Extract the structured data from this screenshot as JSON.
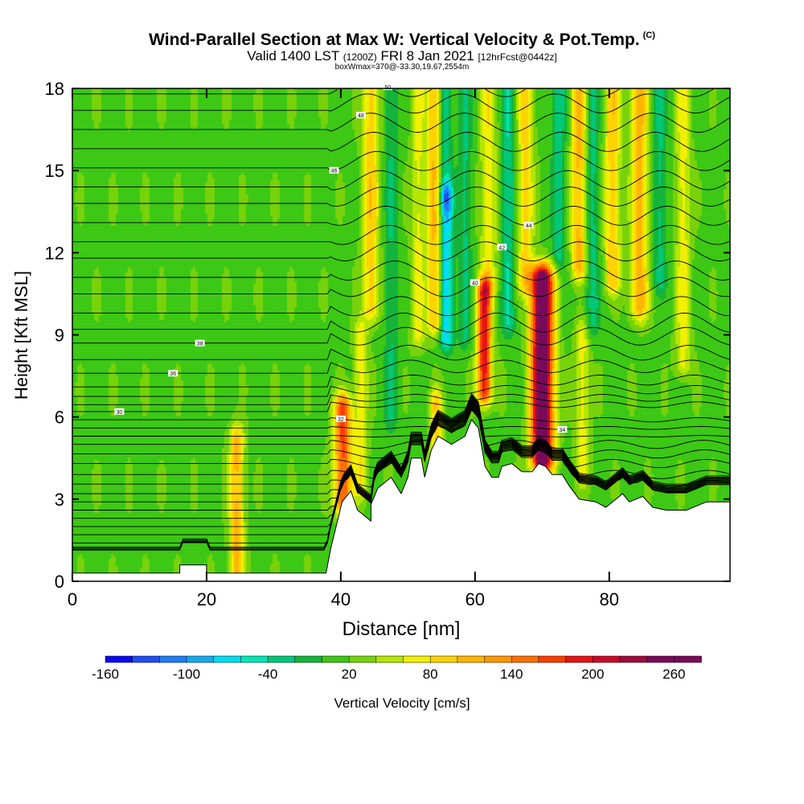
{
  "title": {
    "main": "Wind-Parallel Section at Max W: Vertical Velocity & Pot.Temp.",
    "tag": "(C)",
    "valid": "Valid 1400 LST",
    "valid_z": "(1200Z)",
    "valid_date": "FRI 8 Jan 2021",
    "forecast": "[12hrFcst@0442z]",
    "box": "boxWmax=370@-33.30,19.67,2554m"
  },
  "chart_data": {
    "type": "heatmap",
    "xlabel": "Distance [nm]",
    "ylabel": "Height [Kft MSL]",
    "xlim": [
      0,
      98
    ],
    "ylim": [
      0,
      18
    ],
    "x_ticks": [
      "0",
      "20",
      "40",
      "60",
      "80"
    ],
    "x_tick_values": [
      0,
      20,
      40,
      60,
      80
    ],
    "y_ticks": [
      "0",
      "3",
      "6",
      "9",
      "12",
      "15",
      "18"
    ],
    "y_tick_values": [
      0,
      3,
      6,
      9,
      12,
      15,
      18
    ],
    "colorbar": {
      "label": "Vertical Velocity [cm/s]",
      "tick_labels": [
        "-160",
        "-100",
        "-40",
        "20",
        "80",
        "140",
        "200",
        "260"
      ],
      "tick_values": [
        -160,
        -100,
        -40,
        20,
        80,
        140,
        200,
        260
      ],
      "range": [
        -160,
        280
      ],
      "step": 20,
      "colors": [
        "#0a0af0",
        "#1e4ef5",
        "#1e7cf5",
        "#14aaf0",
        "#00dcf0",
        "#00e6b4",
        "#00c878",
        "#14b43c",
        "#3cc814",
        "#78d20a",
        "#b4e600",
        "#f0f000",
        "#ffd200",
        "#ffb400",
        "#ff9600",
        "#ff6e00",
        "#ff3c00",
        "#e61414",
        "#c80a28",
        "#a00a3c",
        "#780a5a",
        "#780a5a"
      ]
    },
    "background_w": 15,
    "w_features": [
      {
        "x": 24.5,
        "z0": 0.3,
        "z1": 5.2,
        "w": 90,
        "width": 1.1
      },
      {
        "x": 40.3,
        "z0": 3.0,
        "z1": 6.3,
        "w": 150,
        "width": 1.3
      },
      {
        "x": 43.0,
        "z0": 3.5,
        "z1": 9.0,
        "w": 60,
        "width": 1.0
      },
      {
        "x": 44.5,
        "z0": 10.0,
        "z1": 18.0,
        "w": 80,
        "width": 1.2
      },
      {
        "x": 47.5,
        "z0": 6.0,
        "z1": 18.0,
        "w": -35,
        "width": 1.0
      },
      {
        "x": 51.5,
        "z0": 9.0,
        "z1": 18.0,
        "w": 50,
        "width": 1.0
      },
      {
        "x": 54.0,
        "z0": 9.5,
        "z1": 18.0,
        "w": 90,
        "width": 1.2
      },
      {
        "x": 55.7,
        "z0": 9.0,
        "z1": 14.0,
        "w": -100,
        "width": 1.0
      },
      {
        "x": 55.5,
        "z0": 14.0,
        "z1": 18.0,
        "w": -60,
        "width": 1.0
      },
      {
        "x": 54.2,
        "z0": 5.0,
        "z1": 6.5,
        "w": 80,
        "width": 0.9
      },
      {
        "x": 58.5,
        "z0": 9.0,
        "z1": 18.0,
        "w": -40,
        "width": 1.0
      },
      {
        "x": 61.4,
        "z0": 7.0,
        "z1": 10.5,
        "w": 180,
        "width": 1.1
      },
      {
        "x": 62.0,
        "z0": 11.0,
        "z1": 18.0,
        "w": 60,
        "width": 1.2
      },
      {
        "x": 65.0,
        "z0": 9.5,
        "z1": 18.0,
        "w": -55,
        "width": 1.0
      },
      {
        "x": 67.5,
        "z0": 11.0,
        "z1": 18.0,
        "w": 75,
        "width": 1.2
      },
      {
        "x": 70.0,
        "z0": 4.5,
        "z1": 11.0,
        "w": 280,
        "width": 1.6
      },
      {
        "x": 72.5,
        "z0": 12.0,
        "z1": 18.0,
        "w": -50,
        "width": 1.0
      },
      {
        "x": 75.5,
        "z0": 11.5,
        "z1": 18.0,
        "w": 90,
        "width": 1.2
      },
      {
        "x": 77.5,
        "z0": 9.5,
        "z1": 18.0,
        "w": -45,
        "width": 1.0
      },
      {
        "x": 80.5,
        "z0": 11.0,
        "z1": 18.0,
        "w": 80,
        "width": 1.2
      },
      {
        "x": 84.5,
        "z0": 10.0,
        "z1": 18.0,
        "w": 95,
        "width": 1.3
      },
      {
        "x": 87.5,
        "z0": 11.0,
        "z1": 18.0,
        "w": -40,
        "width": 1.0
      },
      {
        "x": 91.0,
        "z0": 8.0,
        "z1": 18.0,
        "w": 55,
        "width": 1.1
      },
      {
        "x": 76.0,
        "z0": 4.0,
        "z1": 9.0,
        "w": 55,
        "width": 1.0
      }
    ],
    "terrain": [
      [
        0,
        0.3
      ],
      [
        16,
        0.3
      ],
      [
        16,
        0.6
      ],
      [
        20,
        0.6
      ],
      [
        20,
        0.3
      ],
      [
        37.8,
        0.3
      ],
      [
        38.5,
        1.2
      ],
      [
        39.5,
        2.2
      ],
      [
        40.2,
        2.9
      ],
      [
        41.5,
        3.3
      ],
      [
        42.5,
        2.6
      ],
      [
        44.5,
        2.2
      ],
      [
        44.5,
        2.8
      ],
      [
        45.5,
        3.4
      ],
      [
        47.5,
        3.8
      ],
      [
        49,
        3.2
      ],
      [
        50,
        3.8
      ],
      [
        50.5,
        4.5
      ],
      [
        52,
        4.5
      ],
      [
        52.5,
        3.8
      ],
      [
        53.5,
        4.8
      ],
      [
        54.5,
        5.3
      ],
      [
        56.5,
        5.0
      ],
      [
        58.5,
        5.3
      ],
      [
        59.5,
        5.9
      ],
      [
        60.5,
        5.6
      ],
      [
        61.5,
        4.2
      ],
      [
        62.5,
        3.8
      ],
      [
        63.5,
        3.8
      ],
      [
        64,
        4.2
      ],
      [
        65.5,
        4.3
      ],
      [
        67,
        4.0
      ],
      [
        68.5,
        4.0
      ],
      [
        69.5,
        4.3
      ],
      [
        70.5,
        4.2
      ],
      [
        71.5,
        3.9
      ],
      [
        73,
        3.9
      ],
      [
        74,
        3.5
      ],
      [
        75.5,
        3.0
      ],
      [
        78,
        2.9
      ],
      [
        79.5,
        2.7
      ],
      [
        80.5,
        2.9
      ],
      [
        82,
        3.2
      ],
      [
        83,
        2.9
      ],
      [
        85,
        3.1
      ],
      [
        86.5,
        2.7
      ],
      [
        88.5,
        2.6
      ],
      [
        91.5,
        2.6
      ],
      [
        94.5,
        2.9
      ],
      [
        98,
        2.9
      ]
    ],
    "isentropes": [
      {
        "base": 0.0,
        "label": ""
      },
      {
        "base": 0.45,
        "label": ""
      },
      {
        "base": 0.8,
        "label": ""
      },
      {
        "base": 1.1,
        "label": ""
      },
      {
        "base": 1.4,
        "label": ""
      },
      {
        "base": 1.7,
        "label": ""
      },
      {
        "base": 2.0,
        "label": ""
      },
      {
        "base": 2.3,
        "label": ""
      },
      {
        "base": 2.6,
        "label": ""
      },
      {
        "base": 2.9,
        "label": ""
      },
      {
        "base": 3.2,
        "label": ""
      },
      {
        "base": 3.55,
        "label": ""
      },
      {
        "base": 3.9,
        "label": ""
      },
      {
        "base": 4.3,
        "label": ""
      },
      {
        "base": 4.65,
        "label": ""
      },
      {
        "base": 5.0,
        "label": ""
      },
      {
        "base": 5.3,
        "label": ""
      },
      {
        "base": 5.6,
        "label": "34"
      },
      {
        "base": 5.9,
        "label": "32"
      },
      {
        "base": 6.2,
        "label": "30"
      },
      {
        "base": 6.45,
        "label": ""
      },
      {
        "base": 6.75,
        "label": ""
      },
      {
        "base": 7.1,
        "label": ""
      },
      {
        "base": 7.6,
        "label": "36"
      },
      {
        "base": 8.1,
        "label": ""
      },
      {
        "base": 8.7,
        "label": "38"
      },
      {
        "base": 9.2,
        "label": ""
      },
      {
        "base": 9.8,
        "label": ""
      },
      {
        "base": 10.5,
        "label": "40"
      },
      {
        "base": 11.1,
        "label": ""
      },
      {
        "base": 11.8,
        "label": "42"
      },
      {
        "base": 12.4,
        "label": ""
      },
      {
        "base": 13.1,
        "label": "44"
      },
      {
        "base": 13.8,
        "label": ""
      },
      {
        "base": 14.4,
        "label": ""
      },
      {
        "base": 15.1,
        "label": "46"
      },
      {
        "base": 15.8,
        "label": ""
      },
      {
        "base": 16.5,
        "label": "48"
      },
      {
        "base": 17.2,
        "label": ""
      },
      {
        "base": 17.8,
        "label": "50"
      }
    ]
  }
}
